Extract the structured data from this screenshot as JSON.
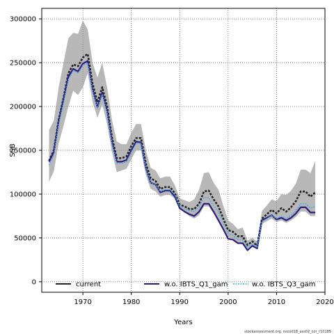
{
  "chart_data": {
    "type": "line",
    "xlabel": "Years",
    "ylabel": "SSB",
    "xlim": [
      1961.5,
      2020
    ],
    "ylim": [
      -12000,
      312000
    ],
    "xticks": [
      1970,
      1980,
      1990,
      2000,
      2010,
      2020
    ],
    "yticks": [
      0,
      50000,
      100000,
      150000,
      200000,
      250000,
      300000
    ],
    "grid": true,
    "legend_position": "bottom",
    "footer": "stockassessment.org, nscod18_ass02_cor_r10185",
    "x": [
      1963,
      1964,
      1965,
      1966,
      1967,
      1968,
      1969,
      1970,
      1971,
      1972,
      1973,
      1974,
      1975,
      1976,
      1977,
      1978,
      1979,
      1980,
      1981,
      1982,
      1983,
      1984,
      1985,
      1986,
      1987,
      1988,
      1989,
      1990,
      1991,
      1992,
      1993,
      1994,
      1995,
      1996,
      1997,
      1998,
      1999,
      2000,
      2001,
      2002,
      2003,
      2004,
      2005,
      2006,
      2007,
      2008,
      2009,
      2010,
      2011,
      2012,
      2013,
      2014,
      2015,
      2016,
      2017,
      2018
    ],
    "band": {
      "lower": [
        114000,
        126000,
        158000,
        178000,
        200000,
        218000,
        213000,
        222000,
        238000,
        205000,
        187000,
        202000,
        180000,
        148000,
        125000,
        127000,
        129000,
        140000,
        150000,
        150000,
        122000,
        106000,
        103000,
        97000,
        99000,
        99000,
        95000,
        83000,
        79000,
        75000,
        72000,
        76000,
        86000,
        86000,
        78000,
        70000,
        60000,
        51000,
        49000,
        45000,
        45000,
        38000,
        42000,
        39000,
        66000,
        69000,
        72000,
        68000,
        70000,
        67000,
        70000,
        74000,
        80000,
        80000,
        75000,
        75000
      ],
      "upper": [
        173000,
        184000,
        222000,
        250000,
        278000,
        284000,
        283000,
        298000,
        288000,
        250000,
        233000,
        250000,
        222000,
        185000,
        160000,
        157000,
        157000,
        170000,
        180000,
        180000,
        150000,
        130000,
        127000,
        118000,
        120000,
        120000,
        110000,
        95000,
        93000,
        91000,
        94000,
        105000,
        124000,
        125000,
        113000,
        105000,
        87000,
        70000,
        66000,
        60000,
        62000,
        47000,
        50000,
        46000,
        81000,
        87000,
        94000,
        92000,
        100000,
        99000,
        104000,
        112000,
        128000,
        128000,
        124000,
        138000
      ]
    },
    "series": [
      {
        "name": "current",
        "color": "#222222",
        "style": "dashed",
        "values": [
          138000,
          150000,
          185000,
          210000,
          238000,
          248000,
          246000,
          256000,
          260000,
          226000,
          205000,
          222000,
          200000,
          165000,
          141000,
          141000,
          143000,
          155000,
          164000,
          164000,
          135000,
          118000,
          115000,
          106000,
          108000,
          108000,
          101000,
          88000,
          86000,
          83000,
          83000,
          89000,
          103000,
          104000,
          94000,
          86000,
          72000,
          59000,
          57000,
          52000,
          52000,
          42000,
          46000,
          41000,
          72000,
          77000,
          82000,
          78000,
          84000,
          80000,
          85000,
          92000,
          103000,
          103000,
          97000,
          102000
        ]
      },
      {
        "name": "w.o. IBTS_Q1_gam",
        "color": "#2b1b7a",
        "style": "solid",
        "values": [
          137000,
          148000,
          183000,
          208000,
          234000,
          243000,
          240000,
          249000,
          252000,
          220000,
          199000,
          216000,
          195000,
          160000,
          137000,
          137000,
          139000,
          150000,
          160000,
          159000,
          130000,
          113000,
          111000,
          102000,
          104000,
          104000,
          97000,
          84000,
          80000,
          77000,
          75000,
          80000,
          89000,
          89000,
          80000,
          70000,
          60000,
          49000,
          48000,
          44000,
          44000,
          36000,
          41000,
          38000,
          70000,
          73000,
          76000,
          71000,
          73000,
          70000,
          73000,
          78000,
          85000,
          85000,
          79000,
          79000
        ]
      },
      {
        "name": "w.o. IBTS_Q3_gam",
        "color": "#4aa8e8",
        "style": "dashed",
        "values": [
          133000,
          145000,
          180000,
          205000,
          231000,
          241000,
          238000,
          247000,
          250000,
          218000,
          198000,
          214000,
          193000,
          158000,
          135000,
          135000,
          137000,
          148000,
          158000,
          158000,
          130000,
          113000,
          111000,
          103000,
          105000,
          105000,
          99000,
          86000,
          83000,
          81000,
          80000,
          85000,
          96000,
          96000,
          87000,
          80000,
          67000,
          55000,
          53000,
          48000,
          48000,
          39000,
          43000,
          39000,
          69000,
          72000,
          76000,
          72000,
          75000,
          72000,
          76000,
          81000,
          89000,
          89000,
          84000,
          86000
        ]
      }
    ]
  }
}
